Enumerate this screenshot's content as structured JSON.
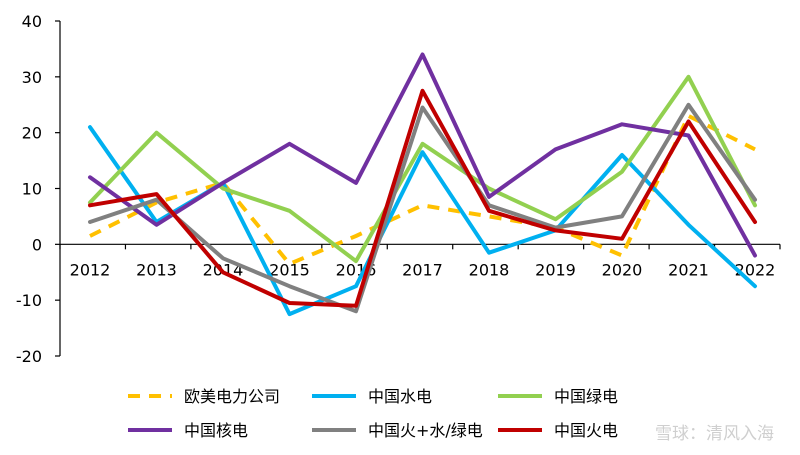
{
  "chart_data": {
    "type": "line",
    "x": [
      "2012",
      "2013",
      "2014",
      "2015",
      "2016",
      "2017",
      "2018",
      "2019",
      "2020",
      "2021",
      "2022"
    ],
    "ylim": [
      -20,
      40
    ],
    "yticks": [
      "-20",
      "-10",
      "0",
      "10",
      "20",
      "30",
      "40"
    ],
    "grid": false,
    "legend_position": "bottom",
    "series": [
      {
        "name": "欧美电力公司",
        "color": "#FFC000",
        "dashed": true,
        "values": [
          1.5,
          7.5,
          11,
          -3.5,
          1.5,
          7,
          5,
          3,
          -2,
          23,
          17
        ]
      },
      {
        "name": "中国水电",
        "color": "#00B0F0",
        "dashed": false,
        "values": [
          21,
          4,
          11,
          -12.5,
          -7.5,
          16.5,
          -1.5,
          2.5,
          16,
          3.5,
          -7.5
        ]
      },
      {
        "name": "中国绿电",
        "color": "#92D050",
        "dashed": false,
        "values": [
          7.5,
          20,
          10,
          6,
          -3,
          18,
          10,
          4.5,
          13,
          30,
          7
        ]
      },
      {
        "name": "中国核电",
        "color": "#7030A0",
        "dashed": false,
        "values": [
          12,
          3.5,
          11,
          18,
          11,
          34,
          8.5,
          17,
          21.5,
          19.5,
          -2
        ]
      },
      {
        "name": "中国火+水/绿电",
        "color": "#808080",
        "dashed": false,
        "values": [
          4,
          8,
          -2.5,
          -7.5,
          -12,
          24.5,
          7,
          3,
          5,
          25,
          8
        ]
      },
      {
        "name": "中国火电",
        "color": "#C00000",
        "dashed": false,
        "values": [
          7,
          9,
          -5,
          -10.5,
          -11,
          27.5,
          6,
          2.5,
          1,
          22,
          4
        ]
      }
    ]
  },
  "watermark": "雪球：清风入海"
}
